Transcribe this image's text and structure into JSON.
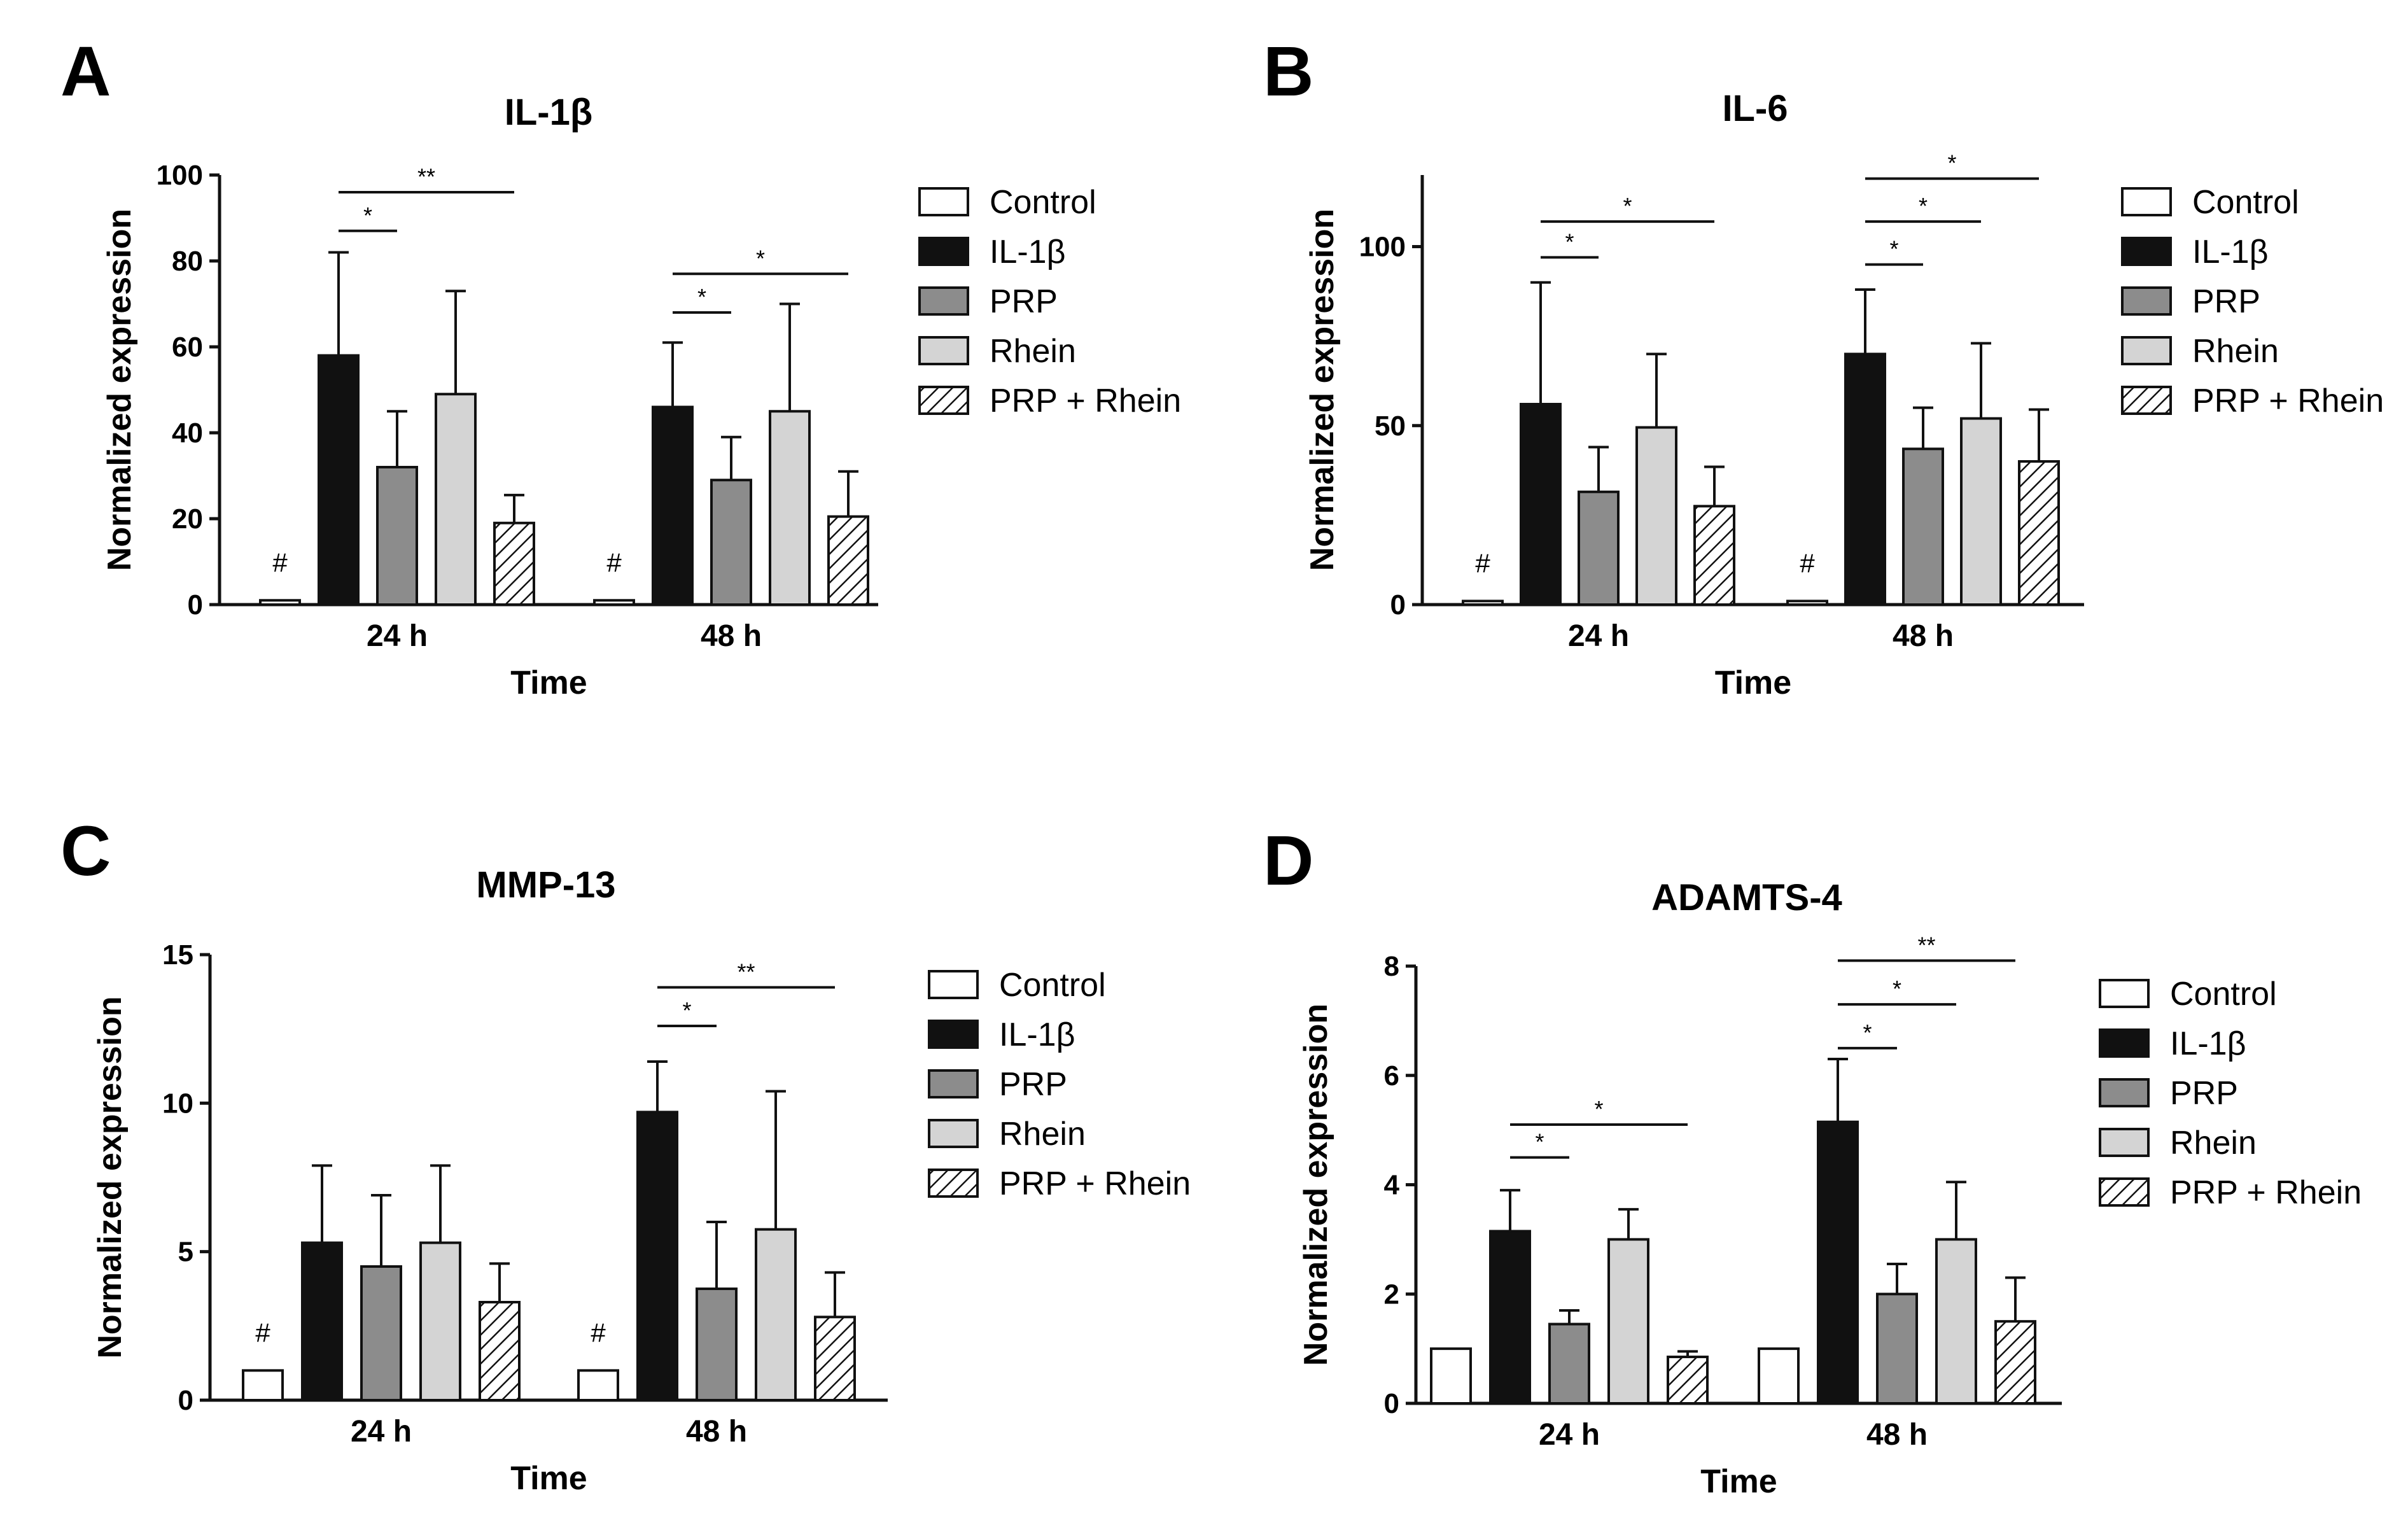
{
  "colors": {
    "control": "#ffffff",
    "il1b": "#111111",
    "prp": "#8c8c8c",
    "rhein": "#d4d4d4",
    "prp_rhein": "hatched"
  },
  "chart_data": [
    {
      "panel": "A",
      "type": "bar",
      "title": "IL-1β",
      "xlabel": "Time",
      "ylabel": "Normalized expression",
      "ylim": [
        0,
        100
      ],
      "yticks": [
        0,
        20,
        40,
        60,
        80,
        100
      ],
      "categories": [
        "24 h",
        "48 h"
      ],
      "series": [
        {
          "name": "Control",
          "values": [
            1,
            1
          ],
          "errors": [
            0,
            0
          ]
        },
        {
          "name": "IL-1β",
          "values": [
            58,
            46
          ],
          "errors": [
            24,
            15
          ]
        },
        {
          "name": "PRP",
          "values": [
            32,
            29
          ],
          "errors": [
            13,
            10
          ]
        },
        {
          "name": "Rhein",
          "values": [
            49,
            45
          ],
          "errors": [
            24,
            25
          ]
        },
        {
          "name": "PRP + Rhein",
          "values": [
            19,
            20.5
          ],
          "errors": [
            6.5,
            10.5
          ]
        }
      ],
      "markers": [
        "#",
        "#"
      ],
      "significance": [
        {
          "category": "24 h",
          "from": "IL-1β",
          "to": "PRP",
          "label": "*",
          "y": 87
        },
        {
          "category": "24 h",
          "from": "IL-1β",
          "to": "PRP + Rhein",
          "label": "**",
          "y": 96
        },
        {
          "category": "48 h",
          "from": "IL-1β",
          "to": "PRP",
          "label": "*",
          "y": 68
        },
        {
          "category": "48 h",
          "from": "IL-1β",
          "to": "PRP + Rhein",
          "label": "*",
          "y": 77
        }
      ]
    },
    {
      "panel": "B",
      "type": "bar",
      "title": "IL-6",
      "xlabel": "Time",
      "ylabel": "Normalized expression",
      "ylim": [
        0,
        120
      ],
      "yticks": [
        0,
        50,
        100
      ],
      "categories": [
        "24 h",
        "48 h"
      ],
      "series": [
        {
          "name": "Control",
          "values": [
            1,
            1
          ],
          "errors": [
            0,
            0
          ]
        },
        {
          "name": "IL-1β",
          "values": [
            56,
            70
          ],
          "errors": [
            34,
            18
          ]
        },
        {
          "name": "PRP",
          "values": [
            31.5,
            43.5
          ],
          "errors": [
            12.5,
            11.5
          ]
        },
        {
          "name": "Rhein",
          "values": [
            49.5,
            52
          ],
          "errors": [
            20.5,
            21
          ]
        },
        {
          "name": "PRP + Rhein",
          "values": [
            27.5,
            40
          ],
          "errors": [
            11,
            14.5
          ]
        }
      ],
      "markers": [
        "#",
        "#"
      ],
      "significance": [
        {
          "category": "24 h",
          "from": "IL-1β",
          "to": "PRP",
          "label": "*",
          "y": 97
        },
        {
          "category": "24 h",
          "from": "IL-1β",
          "to": "PRP + Rhein",
          "label": "*",
          "y": 107
        },
        {
          "category": "48 h",
          "from": "IL-1β",
          "to": "PRP",
          "label": "*",
          "y": 95
        },
        {
          "category": "48 h",
          "from": "IL-1β",
          "to": "Rhein",
          "label": "*",
          "y": 107
        },
        {
          "category": "48 h",
          "from": "IL-1β",
          "to": "PRP + Rhein",
          "label": "*",
          "y": 119
        }
      ]
    },
    {
      "panel": "C",
      "type": "bar",
      "title": "MMP-13",
      "xlabel": "Time",
      "ylabel": "Normalized expression",
      "ylim": [
        0,
        15
      ],
      "yticks": [
        0,
        5,
        10,
        15
      ],
      "categories": [
        "24 h",
        "48 h"
      ],
      "series": [
        {
          "name": "Control",
          "values": [
            1,
            1
          ],
          "errors": [
            0,
            0
          ]
        },
        {
          "name": "IL-1β",
          "values": [
            5.3,
            9.7
          ],
          "errors": [
            2.6,
            1.7
          ]
        },
        {
          "name": "PRP",
          "values": [
            4.5,
            3.75
          ],
          "errors": [
            2.4,
            2.25
          ]
        },
        {
          "name": "Rhein",
          "values": [
            5.3,
            5.75
          ],
          "errors": [
            2.6,
            4.65
          ]
        },
        {
          "name": "PRP + Rhein",
          "values": [
            3.3,
            2.8
          ],
          "errors": [
            1.3,
            1.5
          ]
        }
      ],
      "markers": [
        "#",
        "#"
      ],
      "significance": [
        {
          "category": "48 h",
          "from": "IL-1β",
          "to": "PRP",
          "label": "*",
          "y": 12.6
        },
        {
          "category": "48 h",
          "from": "IL-1β",
          "to": "PRP + Rhein",
          "label": "**",
          "y": 13.9
        }
      ]
    },
    {
      "panel": "D",
      "type": "bar",
      "title": "ADAMTS-4",
      "xlabel": "Time",
      "ylabel": "Normalized expression",
      "ylim": [
        0,
        8
      ],
      "yticks": [
        0,
        2,
        4,
        6,
        8
      ],
      "categories": [
        "24 h",
        "48 h"
      ],
      "series": [
        {
          "name": "Control",
          "values": [
            1,
            1
          ],
          "errors": [
            0,
            0
          ]
        },
        {
          "name": "IL-1β",
          "values": [
            3.15,
            5.15
          ],
          "errors": [
            0.75,
            1.15
          ]
        },
        {
          "name": "PRP",
          "values": [
            1.45,
            2.0
          ],
          "errors": [
            0.25,
            0.55
          ]
        },
        {
          "name": "Rhein",
          "values": [
            3.0,
            3.0
          ],
          "errors": [
            0.55,
            1.05
          ]
        },
        {
          "name": "PRP + Rhein",
          "values": [
            0.85,
            1.5
          ],
          "errors": [
            0.1,
            0.8
          ]
        }
      ],
      "markers": [
        "",
        ""
      ],
      "significance": [
        {
          "category": "24 h",
          "from": "IL-1β",
          "to": "PRP",
          "label": "*",
          "y": 4.5
        },
        {
          "category": "24 h",
          "from": "IL-1β",
          "to": "PRP + Rhein",
          "label": "*",
          "y": 5.1
        },
        {
          "category": "48 h",
          "from": "IL-1β",
          "to": "PRP",
          "label": "*",
          "y": 6.5
        },
        {
          "category": "48 h",
          "from": "IL-1β",
          "to": "Rhein",
          "label": "*",
          "y": 7.3
        },
        {
          "category": "48 h",
          "from": "IL-1β",
          "to": "PRP + Rhein",
          "label": "**",
          "y": 8.1
        }
      ]
    }
  ]
}
